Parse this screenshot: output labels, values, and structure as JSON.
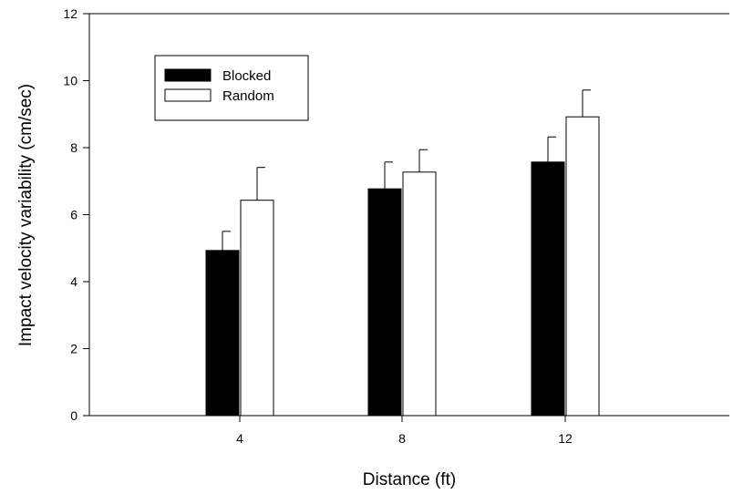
{
  "chart_data": {
    "type": "bar",
    "title": "",
    "xlabel": "Distance (ft)",
    "ylabel": "Impact velocity variability (cm/sec)",
    "categories": [
      "4",
      "8",
      "12"
    ],
    "ylim": [
      0,
      12
    ],
    "yticks": [
      0,
      2,
      4,
      6,
      8,
      10,
      12
    ],
    "grid": false,
    "legend_position": "top-left",
    "series": [
      {
        "name": "Blocked",
        "color": "#000000",
        "values": [
          4.93,
          6.77,
          7.57
        ],
        "errors": [
          0.57,
          0.8,
          0.75
        ]
      },
      {
        "name": "Random",
        "color": "#ffffff",
        "values": [
          6.43,
          7.27,
          8.92
        ],
        "errors": [
          0.98,
          0.67,
          0.8
        ]
      }
    ]
  }
}
